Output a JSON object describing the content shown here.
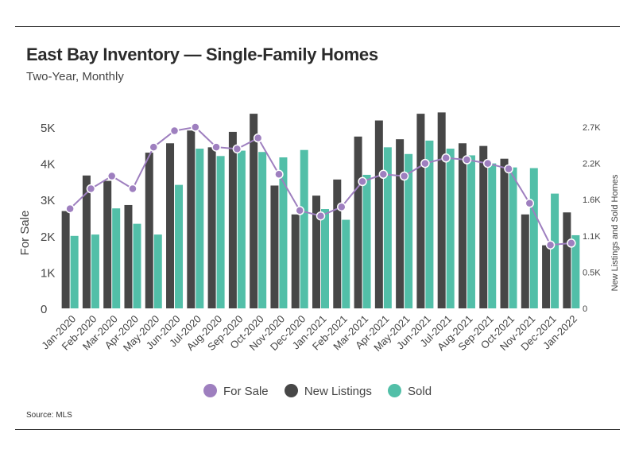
{
  "header": {
    "title": "East Bay Inventory — Single-Family Homes",
    "subtitle": "Two-Year, Monthly"
  },
  "footer": {
    "source": "Source:  MLS"
  },
  "colors": {
    "for_sale": "#9e7fbf",
    "new_listings": "#474747",
    "sold": "#52bfa8",
    "text": "#444444"
  },
  "chart_data": {
    "type": "bar",
    "categories": [
      "Jan-2020",
      "Feb-2020",
      "Mar-2020",
      "Apr-2020",
      "May-2020",
      "Jun-2020",
      "Jul-2020",
      "Aug-2020",
      "Sep-2020",
      "Oct-2020",
      "Nov-2020",
      "Dec-2020",
      "Jan-2021",
      "Feb-2021",
      "Mar-2021",
      "Apr-2021",
      "May-2021",
      "Jun-2021",
      "Jul-2021",
      "Aug-2021",
      "Sep-2021",
      "Oct-2021",
      "Nov-2021",
      "Dec-2021",
      "Jan-2022"
    ],
    "series": [
      {
        "name": "New Listings",
        "kind": "bar",
        "axis": "right",
        "values": [
          1450,
          1980,
          1900,
          1540,
          2320,
          2460,
          2650,
          2400,
          2630,
          2900,
          1830,
          1400,
          1680,
          1920,
          2560,
          2800,
          2520,
          2900,
          2920,
          2460,
          2420,
          2230,
          1400,
          940,
          1430
        ]
      },
      {
        "name": "Sold",
        "kind": "bar",
        "axis": "right",
        "values": [
          1080,
          1100,
          1490,
          1260,
          1100,
          1840,
          2380,
          2270,
          2350,
          2330,
          2250,
          2360,
          1480,
          1320,
          1990,
          2400,
          2300,
          2500,
          2380,
          2280,
          2160,
          2100,
          2090,
          1710,
          1090
        ]
      },
      {
        "name": "For Sale",
        "kind": "line",
        "axis": "left",
        "values": [
          2750,
          3300,
          3650,
          3300,
          4450,
          4900,
          5000,
          4450,
          4400,
          4700,
          3700,
          2700,
          2550,
          2800,
          3500,
          3700,
          3650,
          4000,
          4150,
          4100,
          4000,
          3850,
          2900,
          1750,
          1800
        ]
      }
    ],
    "y_left": {
      "label": "For Sale",
      "range": [
        0,
        5000
      ],
      "ticks": [
        0,
        1000,
        2000,
        3000,
        4000,
        5000
      ],
      "tick_labels": [
        "0",
        "1K",
        "2K",
        "3K",
        "4K",
        "5K"
      ]
    },
    "y_right": {
      "label": "New Listings and Sold Homes",
      "range": [
        0,
        2700
      ],
      "ticks": [
        0,
        540,
        1080,
        1620,
        2160,
        2700
      ],
      "tick_labels": [
        "0",
        "0.5K",
        "1.1K",
        "1.6K",
        "2.2K",
        "2.7K"
      ]
    },
    "grid": false,
    "legend": {
      "position": "bottom",
      "entries": [
        "For Sale",
        "New Listings",
        "Sold"
      ]
    }
  }
}
